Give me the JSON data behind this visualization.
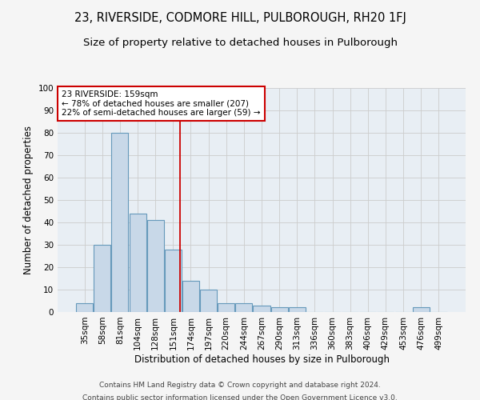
{
  "title1": "23, RIVERSIDE, CODMORE HILL, PULBOROUGH, RH20 1FJ",
  "title2": "Size of property relative to detached houses in Pulborough",
  "xlabel": "Distribution of detached houses by size in Pulborough",
  "ylabel": "Number of detached properties",
  "categories": [
    "35sqm",
    "58sqm",
    "81sqm",
    "104sqm",
    "128sqm",
    "151sqm",
    "174sqm",
    "197sqm",
    "220sqm",
    "244sqm",
    "267sqm",
    "290sqm",
    "313sqm",
    "336sqm",
    "360sqm",
    "383sqm",
    "406sqm",
    "429sqm",
    "453sqm",
    "476sqm",
    "499sqm"
  ],
  "values": [
    4,
    30,
    80,
    44,
    41,
    28,
    14,
    10,
    4,
    4,
    3,
    2,
    2,
    0,
    0,
    0,
    0,
    0,
    0,
    2,
    0
  ],
  "bar_color": "#c8d8e8",
  "bar_edge_color": "#6699bb",
  "grid_color": "#cccccc",
  "bg_color": "#e8eef4",
  "red_line_x": 5.38,
  "annotation_text": "23 RIVERSIDE: 159sqm\n← 78% of detached houses are smaller (207)\n22% of semi-detached houses are larger (59) →",
  "annotation_box_color": "#ffffff",
  "annotation_border_color": "#cc0000",
  "ylim": [
    0,
    100
  ],
  "yticks": [
    0,
    10,
    20,
    30,
    40,
    50,
    60,
    70,
    80,
    90,
    100
  ],
  "footer1": "Contains HM Land Registry data © Crown copyright and database right 2024.",
  "footer2": "Contains public sector information licensed under the Open Government Licence v3.0.",
  "title1_fontsize": 10.5,
  "title2_fontsize": 9.5,
  "xlabel_fontsize": 8.5,
  "ylabel_fontsize": 8.5,
  "tick_fontsize": 7.5,
  "annotation_fontsize": 7.5,
  "footer_fontsize": 6.5
}
